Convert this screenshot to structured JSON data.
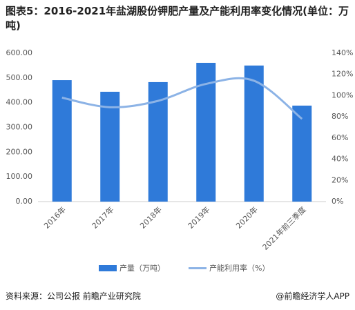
{
  "chart_data": {
    "type": "bar-line",
    "title": "图表5：2016-2021年盐湖股份钾肥产量及产能利用率变化情况(单位：万吨)",
    "categories": [
      "2016年",
      "2017年",
      "2018年",
      "2019年",
      "2020年",
      "2021年前三季度"
    ],
    "series": [
      {
        "name": "产量（万吨）",
        "type": "bar",
        "color": "#2f7ad9",
        "values": [
          491,
          444,
          483,
          561,
          550,
          388
        ]
      },
      {
        "name": "产能利用率（%）",
        "type": "line",
        "axis": "y2",
        "color": "#8cb3e6",
        "values": [
          98,
          89,
          95,
          111,
          114,
          78
        ]
      }
    ],
    "ylim": [
      0,
      600
    ],
    "yticks": [
      {
        "value": 0,
        "label": "0.00"
      },
      {
        "value": 100,
        "label": "100.00"
      },
      {
        "value": 200,
        "label": "200.00"
      },
      {
        "value": 300,
        "label": "300.00"
      },
      {
        "value": 400,
        "label": "400.00"
      },
      {
        "value": 500,
        "label": "500.00"
      },
      {
        "value": 600,
        "label": "600.00"
      }
    ],
    "y2lim": [
      0,
      140
    ],
    "y2ticks": [
      {
        "value": 0,
        "label": "0%"
      },
      {
        "value": 20,
        "label": "20%"
      },
      {
        "value": 40,
        "label": "40%"
      },
      {
        "value": 60,
        "label": "60%"
      },
      {
        "value": 80,
        "label": "80%"
      },
      {
        "value": 100,
        "label": "100%"
      },
      {
        "value": 120,
        "label": "120%"
      },
      {
        "value": 140,
        "label": "140%"
      }
    ],
    "grid": false,
    "legend": "bottom",
    "source": "资料来源：公司公报 前瞻产业研究院",
    "credit": "@前瞻经济学人APP"
  }
}
